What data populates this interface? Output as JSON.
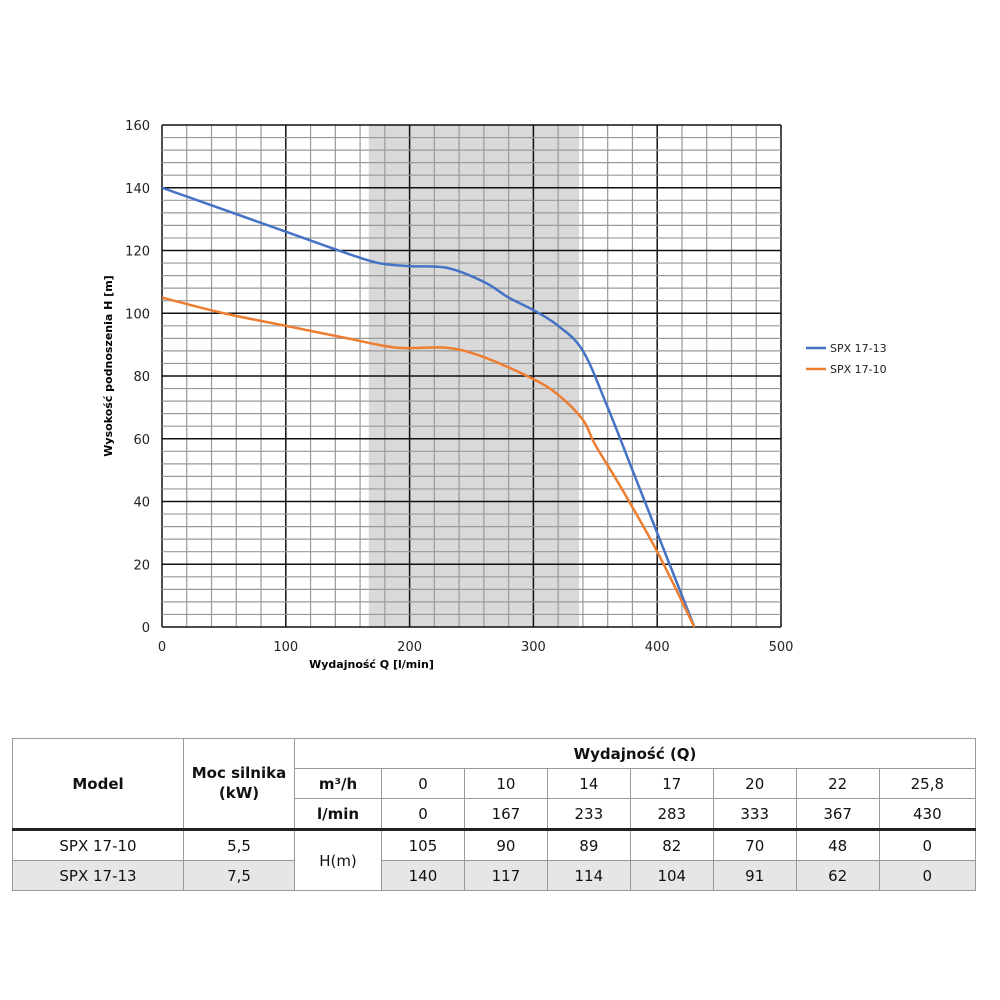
{
  "chart_data": {
    "type": "line",
    "xlabel": "Wydajność Q [l/min]",
    "ylabel": "Wysokość podnoszenia H [m]",
    "xlim": [
      0,
      500
    ],
    "ylim": [
      0,
      160
    ],
    "xticks": [
      0,
      100,
      200,
      300,
      400,
      500
    ],
    "yticks": [
      0,
      20,
      40,
      60,
      80,
      100,
      120,
      140,
      160
    ],
    "grid": true,
    "shaded_range": [
      167,
      337
    ],
    "legend_position": "right",
    "series": [
      {
        "name": "SPX 17-13",
        "color": "#4472c4",
        "x": [
          0,
          50,
          100,
          150,
          175,
          200,
          230,
          260,
          280,
          300,
          320,
          340,
          360,
          380,
          400,
          430
        ],
        "y": [
          140,
          133,
          126,
          119,
          116,
          115,
          114.5,
          110,
          105,
          101,
          96,
          88,
          70,
          50,
          30,
          0
        ]
      },
      {
        "name": "SPX 17-10",
        "color": "#ed7d31",
        "x": [
          0,
          50,
          100,
          150,
          190,
          230,
          260,
          300,
          320,
          340,
          350,
          370,
          400,
          430
        ],
        "y": [
          105,
          100,
          96,
          92,
          89,
          89,
          86,
          79,
          74,
          66,
          58,
          45,
          24,
          0
        ]
      }
    ]
  },
  "table": {
    "model": "Model",
    "power": "Moc silnika (kW)",
    "flow": "Wydajność (Q)",
    "unit_m3": "m³/h",
    "unit_lmin": "l/min",
    "h": "H(m)",
    "m3h": [
      "0",
      "10",
      "14",
      "17",
      "20",
      "22",
      "25,8"
    ],
    "lmin": [
      "0",
      "167",
      "233",
      "283",
      "333",
      "367",
      "430"
    ],
    "rows": [
      {
        "model": "SPX 17-10",
        "power": "5,5",
        "h": [
          "105",
          "90",
          "89",
          "82",
          "70",
          "48",
          "0"
        ]
      },
      {
        "model": "SPX 17-13",
        "power": "7,5",
        "h": [
          "140",
          "117",
          "114",
          "104",
          "91",
          "62",
          "0"
        ]
      }
    ]
  }
}
